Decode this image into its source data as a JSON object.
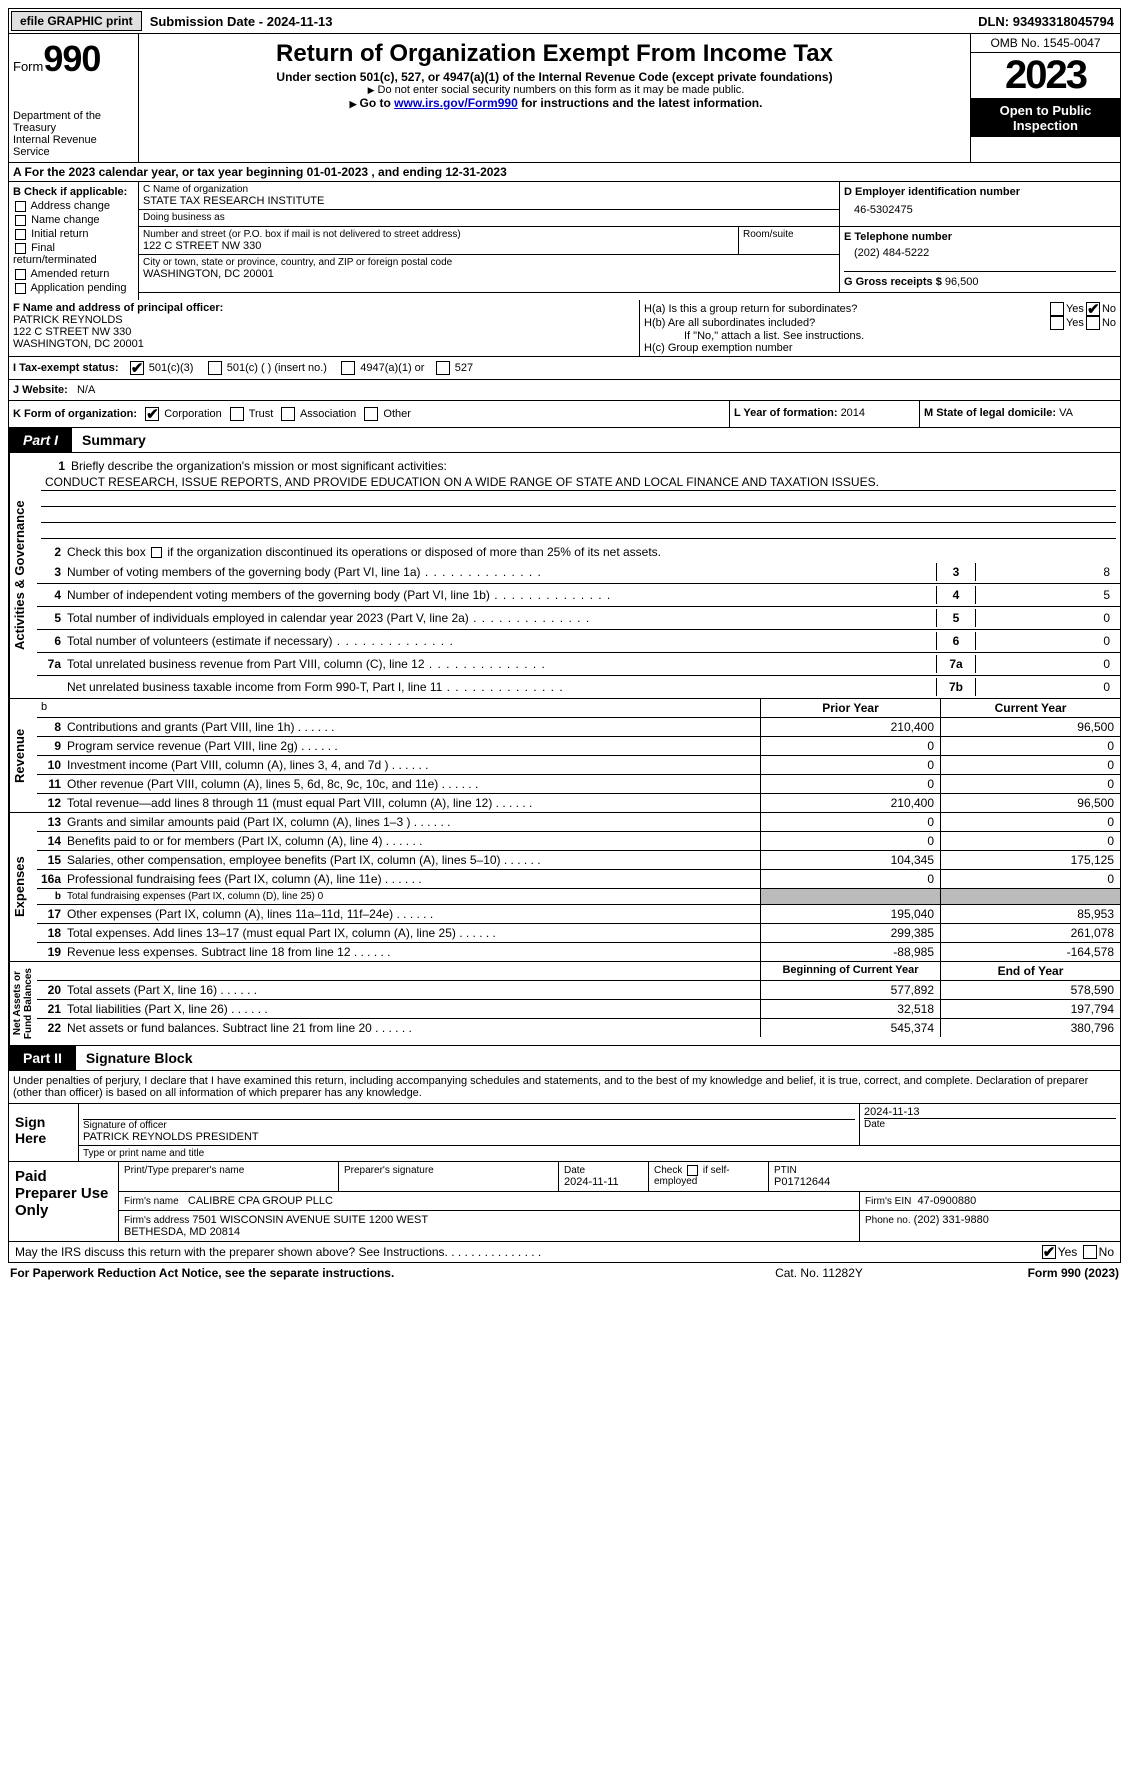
{
  "topbar": {
    "efile": "efile GRAPHIC print",
    "subdate_label": "Submission Date - ",
    "subdate": "2024-11-13",
    "dln_label": "DLN: ",
    "dln": "93493318045794"
  },
  "header": {
    "form_label": "Form",
    "form_num": "990",
    "dept": "Department of the Treasury\nInternal Revenue Service",
    "title": "Return of Organization Exempt From Income Tax",
    "sub1": "Under section 501(c), 527, or 4947(a)(1) of the Internal Revenue Code (except private foundations)",
    "sub2": "Do not enter social security numbers on this form as it may be made public.",
    "sub3_pre": "Go to ",
    "sub3_link": "www.irs.gov/Form990",
    "sub3_post": " for instructions and the latest information.",
    "omb": "OMB No. 1545-0047",
    "year": "2023",
    "open": "Open to Public Inspection"
  },
  "row_a": "A   For the 2023 calendar year, or tax year beginning 01-01-2023    , and ending 12-31-2023",
  "section_b": {
    "hdr": "B Check if applicable:",
    "items": [
      "Address change",
      "Name change",
      "Initial return",
      "Final return/terminated",
      "Amended return",
      "Application pending"
    ]
  },
  "section_c": {
    "name_lbl": "C Name of organization",
    "name": "STATE TAX RESEARCH INSTITUTE",
    "dba_lbl": "Doing business as",
    "dba": "",
    "addr_lbl": "Number and street (or P.O. box if mail is not delivered to street address)",
    "room_lbl": "Room/suite",
    "addr": "122 C STREET NW 330",
    "city_lbl": "City or town, state or province, country, and ZIP or foreign postal code",
    "city": "WASHINGTON, DC  20001"
  },
  "section_d": {
    "lbl": "D Employer identification number",
    "val": "46-5302475",
    "e_lbl": "E Telephone number",
    "e_val": "(202) 484-5222",
    "g_lbl": "G Gross receipts $ ",
    "g_val": "96,500"
  },
  "section_f": {
    "lbl": "F  Name and address of principal officer:",
    "name": "PATRICK REYNOLDS",
    "addr1": "122 C STREET NW 330",
    "addr2": "WASHINGTON, DC  20001"
  },
  "section_h": {
    "a_lbl": "H(a)  Is this a group return for subordinates?",
    "a_yes": "Yes",
    "a_no": "No",
    "b_lbl": "H(b)  Are all subordinates included?",
    "b_yes": "Yes",
    "b_no": "No",
    "b_note": "If \"No,\" attach a list. See instructions.",
    "c_lbl": "H(c)  Group exemption number"
  },
  "section_i": {
    "lbl": "I   Tax-exempt status:",
    "c3": "501(c)(3)",
    "c": "501(c) (  ) (insert no.)",
    "a1": "4947(a)(1) or",
    "s527": "527"
  },
  "section_j": {
    "lbl": "J   Website:",
    "val": "N/A"
  },
  "section_k": {
    "lbl": "K Form of organization:",
    "corp": "Corporation",
    "trust": "Trust",
    "assoc": "Association",
    "other": "Other"
  },
  "section_l": {
    "lbl": "L Year of formation: ",
    "val": "2014"
  },
  "section_m": {
    "lbl": "M State of legal domicile: ",
    "val": "VA"
  },
  "part1": {
    "tag": "Part I",
    "title": "Summary"
  },
  "mission": {
    "lbl": "Briefly describe the organization's mission or most significant activities:",
    "val": "CONDUCT RESEARCH, ISSUE REPORTS, AND PROVIDE EDUCATION ON A WIDE RANGE OF STATE AND LOCAL FINANCE AND TAXATION ISSUES."
  },
  "gov_lines": {
    "l2": "Check this box        if the organization discontinued its operations or disposed of more than 25% of its net assets.",
    "l3": "Number of voting members of the governing body (Part VI, line 1a)",
    "l4": "Number of independent voting members of the governing body (Part VI, line 1b)",
    "l5": "Total number of individuals employed in calendar year 2023 (Part V, line 2a)",
    "l6": "Total number of volunteers (estimate if necessary)",
    "l7a": "Total unrelated business revenue from Part VIII, column (C), line 12",
    "l7b": "Net unrelated business taxable income from Form 990-T, Part I, line 11"
  },
  "gov_vals": {
    "l3": "8",
    "l4": "5",
    "l5": "0",
    "l6": "0",
    "l7a": "0",
    "l7b": "0"
  },
  "fin_hdr": {
    "b": "b",
    "prior": "Prior Year",
    "current": "Current Year"
  },
  "revenue": [
    {
      "n": "8",
      "d": "Contributions and grants (Part VIII, line 1h)",
      "p": "210,400",
      "c": "96,500"
    },
    {
      "n": "9",
      "d": "Program service revenue (Part VIII, line 2g)",
      "p": "0",
      "c": "0"
    },
    {
      "n": "10",
      "d": "Investment income (Part VIII, column (A), lines 3, 4, and 7d )",
      "p": "0",
      "c": "0"
    },
    {
      "n": "11",
      "d": "Other revenue (Part VIII, column (A), lines 5, 6d, 8c, 9c, 10c, and 11e)",
      "p": "0",
      "c": "0"
    },
    {
      "n": "12",
      "d": "Total revenue—add lines 8 through 11 (must equal Part VIII, column (A), line 12)",
      "p": "210,400",
      "c": "96,500"
    }
  ],
  "expenses": [
    {
      "n": "13",
      "d": "Grants and similar amounts paid (Part IX, column (A), lines 1–3 )",
      "p": "0",
      "c": "0"
    },
    {
      "n": "14",
      "d": "Benefits paid to or for members (Part IX, column (A), line 4)",
      "p": "0",
      "c": "0"
    },
    {
      "n": "15",
      "d": "Salaries, other compensation, employee benefits (Part IX, column (A), lines 5–10)",
      "p": "104,345",
      "c": "175,125"
    },
    {
      "n": "16a",
      "d": "Professional fundraising fees (Part IX, column (A), line 11e)",
      "p": "0",
      "c": "0"
    },
    {
      "n": "b",
      "d": "Total fundraising expenses (Part IX, column (D), line 25) 0",
      "p": "",
      "c": "",
      "shade": true,
      "small": true
    },
    {
      "n": "17",
      "d": "Other expenses (Part IX, column (A), lines 11a–11d, 11f–24e)",
      "p": "195,040",
      "c": "85,953"
    },
    {
      "n": "18",
      "d": "Total expenses. Add lines 13–17 (must equal Part IX, column (A), line 25)",
      "p": "299,385",
      "c": "261,078"
    },
    {
      "n": "19",
      "d": "Revenue less expenses. Subtract line 18 from line 12",
      "p": "-88,985",
      "c": "-164,578"
    }
  ],
  "na_hdr": {
    "prior": "Beginning of Current Year",
    "current": "End of Year"
  },
  "netassets": [
    {
      "n": "20",
      "d": "Total assets (Part X, line 16)",
      "p": "577,892",
      "c": "578,590"
    },
    {
      "n": "21",
      "d": "Total liabilities (Part X, line 26)",
      "p": "32,518",
      "c": "197,794"
    },
    {
      "n": "22",
      "d": "Net assets or fund balances. Subtract line 21 from line 20",
      "p": "545,374",
      "c": "380,796"
    }
  ],
  "vtabs": {
    "gov": "Activities & Governance",
    "rev": "Revenue",
    "exp": "Expenses",
    "na": "Net Assets or\nFund Balances"
  },
  "part2": {
    "tag": "Part II",
    "title": "Signature Block"
  },
  "sig_text": "Under penalties of perjury, I declare that I have examined this return, including accompanying schedules and statements, and to the best of my knowledge and belief, it is true, correct, and complete. Declaration of preparer (other than officer) is based on all information of which preparer has any knowledge.",
  "sign": {
    "here": "Sign Here",
    "sig_lbl": "Signature of officer",
    "date_lbl": "Date",
    "date_val": "2024-11-13",
    "name": "PATRICK REYNOLDS  PRESIDENT",
    "name_lbl": "Type or print name and title"
  },
  "paid": {
    "left": "Paid Preparer Use Only",
    "h1": "Print/Type preparer's name",
    "h2": "Preparer's signature",
    "h3_lbl": "Date",
    "h3_val": "2024-11-11",
    "h4_lbl": "Check          if self-employed",
    "h5_lbl": "PTIN",
    "h5_val": "P01712644",
    "firm_lbl": "Firm's name",
    "firm_val": "CALIBRE CPA GROUP PLLC",
    "ein_lbl": "Firm's EIN",
    "ein_val": "47-0900880",
    "addr_lbl": "Firm's address",
    "addr_val": "7501 WISCONSIN AVENUE SUITE 1200 WEST\nBETHESDA, MD  20814",
    "phone_lbl": "Phone no.",
    "phone_val": "(202) 331-9880"
  },
  "may": {
    "txt": "May the IRS discuss this return with the preparer shown above? See Instructions.",
    "yes": "Yes",
    "no": "No"
  },
  "footer": {
    "l": "For Paperwork Reduction Act Notice, see the separate instructions.",
    "c": "Cat. No. 11282Y",
    "r": "Form 990 (2023)"
  }
}
